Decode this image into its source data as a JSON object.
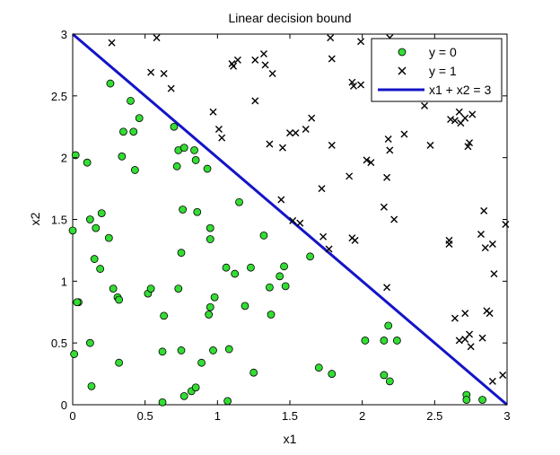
{
  "chart_data": {
    "type": "scatter",
    "title": "Linear decision bound",
    "xlabel": "x1",
    "ylabel": "x2",
    "xlim": [
      0,
      3
    ],
    "ylim": [
      0,
      3
    ],
    "xticks": [
      "0",
      "0.5",
      "1",
      "1.5",
      "2",
      "2.5",
      "3"
    ],
    "yticks": [
      "0",
      "0.5",
      "1",
      "1.5",
      "2",
      "2.5",
      "3"
    ],
    "grid": false,
    "legend_position": "top-right",
    "series": [
      {
        "name": "y = 0",
        "marker": "circle",
        "color": "#33dd33",
        "points": [
          [
            0.02,
            2.02
          ],
          [
            0.1,
            1.96
          ],
          [
            0.0,
            1.41
          ],
          [
            0.12,
            1.5
          ],
          [
            0.16,
            1.43
          ],
          [
            0.2,
            1.55
          ],
          [
            0.25,
            1.35
          ],
          [
            0.15,
            1.18
          ],
          [
            0.19,
            1.1
          ],
          [
            0.04,
            0.83
          ],
          [
            0.03,
            0.83
          ],
          [
            0.28,
            0.94
          ],
          [
            0.31,
            0.87
          ],
          [
            0.32,
            0.85
          ],
          [
            0.12,
            0.5
          ],
          [
            0.01,
            0.41
          ],
          [
            0.32,
            0.34
          ],
          [
            0.13,
            0.15
          ],
          [
            0.26,
            2.6
          ],
          [
            0.35,
            2.21
          ],
          [
            0.4,
            2.46
          ],
          [
            0.42,
            2.21
          ],
          [
            0.46,
            2.32
          ],
          [
            0.34,
            2.01
          ],
          [
            0.43,
            1.9
          ],
          [
            0.52,
            0.9
          ],
          [
            0.54,
            0.94
          ],
          [
            0.63,
            0.72
          ],
          [
            0.62,
            0.43
          ],
          [
            0.62,
            0.02
          ],
          [
            0.7,
            2.25
          ],
          [
            0.73,
            2.06
          ],
          [
            0.77,
            2.08
          ],
          [
            0.72,
            1.93
          ],
          [
            0.84,
            2.06
          ],
          [
            0.85,
            1.98
          ],
          [
            0.93,
            1.91
          ],
          [
            0.76,
            1.58
          ],
          [
            0.86,
            1.56
          ],
          [
            0.75,
            1.23
          ],
          [
            0.73,
            0.94
          ],
          [
            0.75,
            0.44
          ],
          [
            0.95,
            1.43
          ],
          [
            0.95,
            1.34
          ],
          [
            1.15,
            1.64
          ],
          [
            0.98,
            0.87
          ],
          [
            0.95,
            0.79
          ],
          [
            0.94,
            0.73
          ],
          [
            0.97,
            0.44
          ],
          [
            0.89,
            0.34
          ],
          [
            0.82,
            0.11
          ],
          [
            0.77,
            0.07
          ],
          [
            0.85,
            0.14
          ],
          [
            1.07,
            0.03
          ],
          [
            1.08,
            0.45
          ],
          [
            1.06,
            1.11
          ],
          [
            1.12,
            1.06
          ],
          [
            1.23,
            1.11
          ],
          [
            1.19,
            0.8
          ],
          [
            1.32,
            1.37
          ],
          [
            1.36,
            0.95
          ],
          [
            1.37,
            0.73
          ],
          [
            1.46,
            1.12
          ],
          [
            1.43,
            1.04
          ],
          [
            1.47,
            0.96
          ],
          [
            1.25,
            0.26
          ],
          [
            1.64,
            1.2
          ],
          [
            1.7,
            0.3
          ],
          [
            1.79,
            0.25
          ],
          [
            2.02,
            0.52
          ],
          [
            2.15,
            0.52
          ],
          [
            2.18,
            0.64
          ],
          [
            2.24,
            0.52
          ],
          [
            2.15,
            0.24
          ],
          [
            2.19,
            0.19
          ],
          [
            2.72,
            0.08
          ],
          [
            2.72,
            0.04
          ],
          [
            2.83,
            0.04
          ]
        ]
      },
      {
        "name": "y = 1",
        "marker": "x",
        "color": "#000000",
        "points": [
          [
            0.27,
            2.93
          ],
          [
            0.58,
            2.97
          ],
          [
            0.54,
            2.69
          ],
          [
            0.63,
            2.68
          ],
          [
            0.68,
            2.56
          ],
          [
            0.97,
            2.37
          ],
          [
            1.01,
            2.23
          ],
          [
            1.03,
            2.16
          ],
          [
            1.1,
            2.76
          ],
          [
            1.11,
            2.74
          ],
          [
            1.14,
            2.79
          ],
          [
            1.26,
            2.79
          ],
          [
            1.32,
            2.84
          ],
          [
            1.33,
            2.75
          ],
          [
            1.38,
            2.68
          ],
          [
            1.26,
            2.46
          ],
          [
            1.36,
            2.11
          ],
          [
            1.45,
            2.08
          ],
          [
            1.5,
            2.2
          ],
          [
            1.54,
            2.2
          ],
          [
            1.61,
            2.23
          ],
          [
            1.65,
            2.32
          ],
          [
            1.78,
            2.97
          ],
          [
            1.79,
            2.8
          ],
          [
            1.79,
            2.1
          ],
          [
            1.93,
            2.61
          ],
          [
            1.94,
            2.58
          ],
          [
            1.99,
            2.59
          ],
          [
            1.99,
            2.94
          ],
          [
            2.19,
            2.97
          ],
          [
            2.03,
            1.98
          ],
          [
            2.06,
            1.96
          ],
          [
            2.18,
            2.15
          ],
          [
            2.19,
            2.06
          ],
          [
            2.29,
            2.19
          ],
          [
            2.4,
            2.55
          ],
          [
            2.43,
            2.42
          ],
          [
            2.47,
            2.1
          ],
          [
            2.17,
            1.84
          ],
          [
            1.72,
            1.75
          ],
          [
            1.91,
            1.85
          ],
          [
            1.44,
            1.66
          ],
          [
            1.52,
            1.49
          ],
          [
            1.57,
            1.47
          ],
          [
            1.73,
            1.36
          ],
          [
            1.77,
            1.26
          ],
          [
            1.93,
            1.35
          ],
          [
            1.95,
            1.33
          ],
          [
            2.15,
            1.6
          ],
          [
            2.22,
            1.5
          ],
          [
            2.17,
            0.95
          ],
          [
            2.61,
            2.31
          ],
          [
            2.64,
            2.3
          ],
          [
            2.67,
            2.37
          ],
          [
            2.68,
            2.28
          ],
          [
            2.71,
            2.32
          ],
          [
            2.73,
            2.09
          ],
          [
            2.74,
            2.12
          ],
          [
            2.76,
            2.35
          ],
          [
            2.84,
            1.57
          ],
          [
            2.82,
            1.38
          ],
          [
            2.85,
            1.27
          ],
          [
            2.9,
            1.3
          ],
          [
            2.99,
            1.46
          ],
          [
            2.91,
            1.06
          ],
          [
            2.6,
            1.33
          ],
          [
            2.6,
            1.3
          ],
          [
            2.64,
            0.7
          ],
          [
            2.71,
            0.74
          ],
          [
            2.71,
            0.53
          ],
          [
            2.67,
            0.52
          ],
          [
            2.74,
            0.57
          ],
          [
            2.75,
            0.47
          ],
          [
            2.83,
            0.54
          ],
          [
            2.86,
            0.76
          ],
          [
            2.88,
            0.74
          ],
          [
            2.97,
            0.24
          ],
          [
            2.9,
            0.19
          ]
        ]
      },
      {
        "name": "x1 + x2 = 3",
        "type": "line",
        "color": "#1414c8",
        "x": [
          0,
          3
        ],
        "y": [
          3,
          0
        ]
      }
    ]
  }
}
